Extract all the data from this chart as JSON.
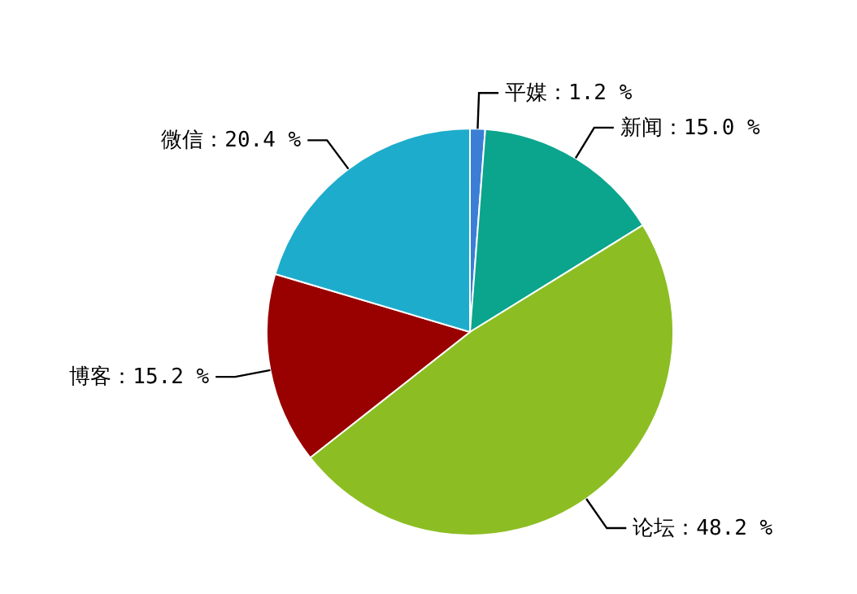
{
  "chart_data": {
    "type": "pie",
    "categories": [
      "平媒",
      "新闻",
      "论坛",
      "博客",
      "微信"
    ],
    "values": [
      1.2,
      15.0,
      48.2,
      15.2,
      20.4
    ],
    "colors": [
      "#3a7fd5",
      "#0aa58c",
      "#8cbe23",
      "#990000",
      "#1eaccc"
    ],
    "value_labels": [
      "：1.2 %",
      "：15.0 %",
      "：48.2 %",
      "：15.2 %",
      "：20.4 %"
    ]
  }
}
